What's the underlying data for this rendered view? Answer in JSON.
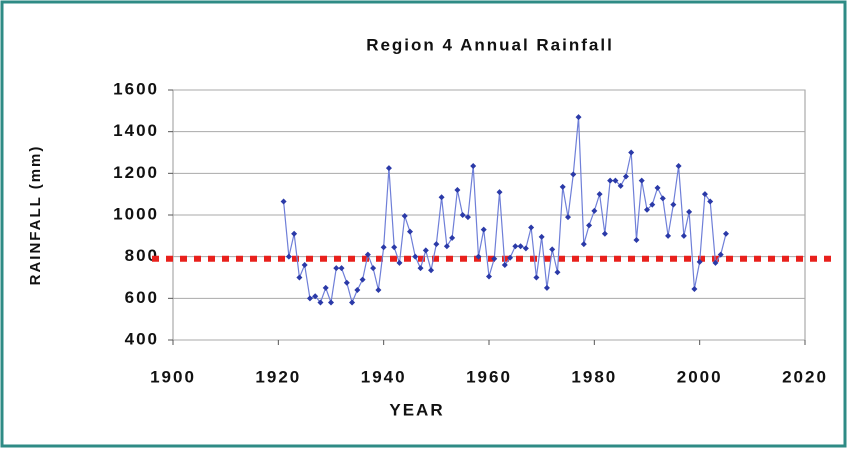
{
  "chart_data": {
    "type": "line",
    "title": "Region 4 Annual Rainfall",
    "x_label": "YEAR",
    "y_label": "RAINFALL (mm)",
    "x": [
      1921,
      1922,
      1923,
      1924,
      1925,
      1926,
      1927,
      1928,
      1929,
      1930,
      1931,
      1932,
      1933,
      1934,
      1935,
      1936,
      1937,
      1938,
      1939,
      1940,
      1941,
      1942,
      1943,
      1944,
      1945,
      1946,
      1947,
      1948,
      1949,
      1950,
      1951,
      1952,
      1953,
      1954,
      1955,
      1956,
      1957,
      1958,
      1959,
      1960,
      1961,
      1962,
      1963,
      1964,
      1965,
      1966,
      1967,
      1968,
      1969,
      1970,
      1971,
      1972,
      1973,
      1974,
      1975,
      1976,
      1977,
      1978,
      1979,
      1980,
      1981,
      1982,
      1983,
      1984,
      1985,
      1986,
      1987,
      1988,
      1989,
      1990,
      1991,
      1992,
      1993,
      1994,
      1995,
      1996,
      1997,
      1998,
      1999,
      2000,
      2001,
      2002,
      2003,
      2004,
      2005
    ],
    "series": [
      {
        "name": "Annual rainfall",
        "color": "#6f7fd8",
        "values": [
          1065,
          800,
          910,
          700,
          760,
          600,
          610,
          580,
          650,
          580,
          745,
          745,
          675,
          580,
          640,
          690,
          810,
          745,
          640,
          845,
          1225,
          845,
          770,
          995,
          920,
          800,
          745,
          830,
          735,
          860,
          1085,
          850,
          890,
          1120,
          1000,
          990,
          1235,
          800,
          930,
          705,
          790,
          1110,
          760,
          795,
          850,
          850,
          840,
          940,
          700,
          895,
          650,
          835,
          725,
          1135,
          990,
          1195,
          1470,
          860,
          950,
          1020,
          1100,
          910,
          1165,
          1165,
          1140,
          1185,
          1300,
          880,
          1165,
          1025,
          1050,
          1130,
          1080,
          900,
          1050,
          1235,
          900,
          1015,
          645,
          775,
          1100,
          1065,
          770,
          810,
          910
        ]
      }
    ],
    "reference_line": {
      "value": 790,
      "color": "#e8201c"
    },
    "xlim": [
      1900,
      2020
    ],
    "xticks": [
      1900,
      1920,
      1940,
      1960,
      1980,
      2000,
      2020
    ],
    "ylim": [
      400,
      1600
    ],
    "yticks": [
      400,
      600,
      800,
      1000,
      1200,
      1400,
      1600
    ],
    "grid": true
  }
}
